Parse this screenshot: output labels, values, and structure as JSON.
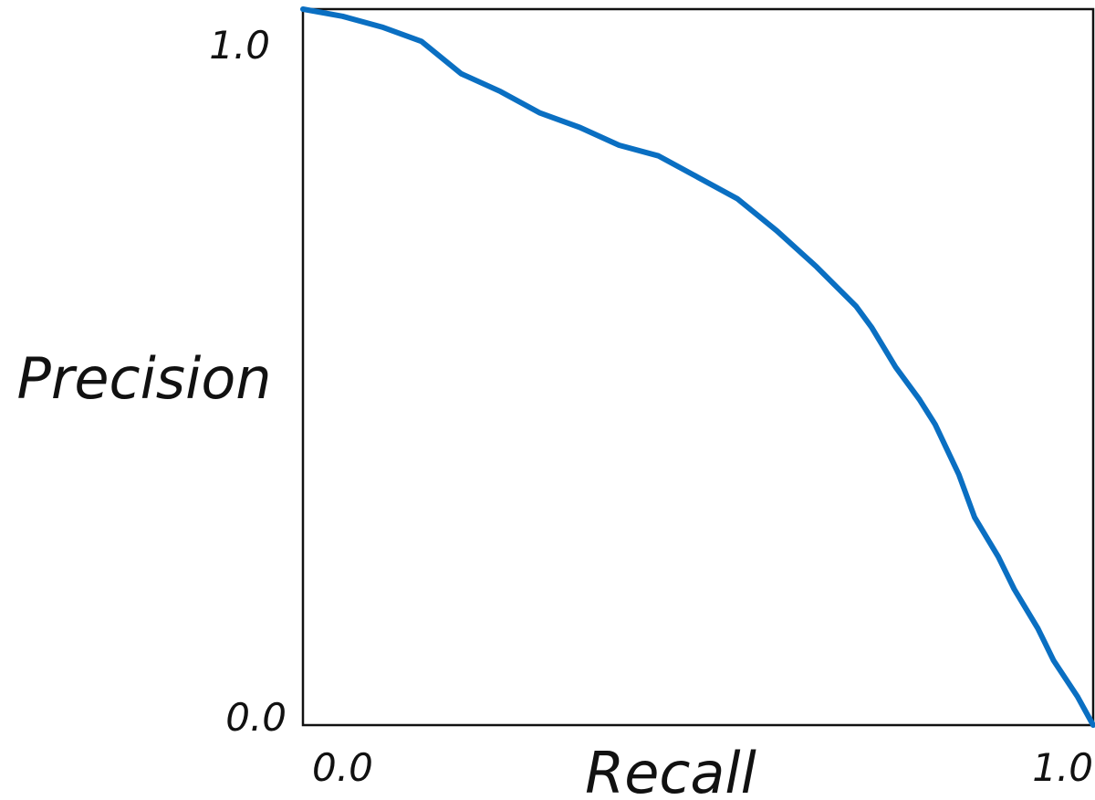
{
  "chart_data": {
    "type": "line",
    "title": "",
    "xlabel": "Recall",
    "ylabel": "Precision",
    "xlim": [
      0,
      1
    ],
    "ylim": [
      0,
      1
    ],
    "x_ticks": [
      "0.0",
      "1.0"
    ],
    "y_ticks": [
      "0.0",
      "1.0"
    ],
    "grid": false,
    "legend": "none",
    "series": [
      {
        "color": "#0a6fc2",
        "x": [
          0.0,
          0.05,
          0.1,
          0.15,
          0.2,
          0.25,
          0.3,
          0.35,
          0.4,
          0.45,
          0.5,
          0.55,
          0.6,
          0.65,
          0.7,
          0.72,
          0.75,
          0.78,
          0.8,
          0.83,
          0.85,
          0.88,
          0.9,
          0.93,
          0.95,
          0.98,
          1.0
        ],
        "y": [
          1.0,
          0.99,
          0.975,
          0.955,
          0.91,
          0.885,
          0.855,
          0.835,
          0.81,
          0.795,
          0.765,
          0.735,
          0.69,
          0.64,
          0.585,
          0.555,
          0.5,
          0.455,
          0.42,
          0.35,
          0.29,
          0.235,
          0.19,
          0.135,
          0.09,
          0.04,
          0.0
        ]
      }
    ]
  }
}
